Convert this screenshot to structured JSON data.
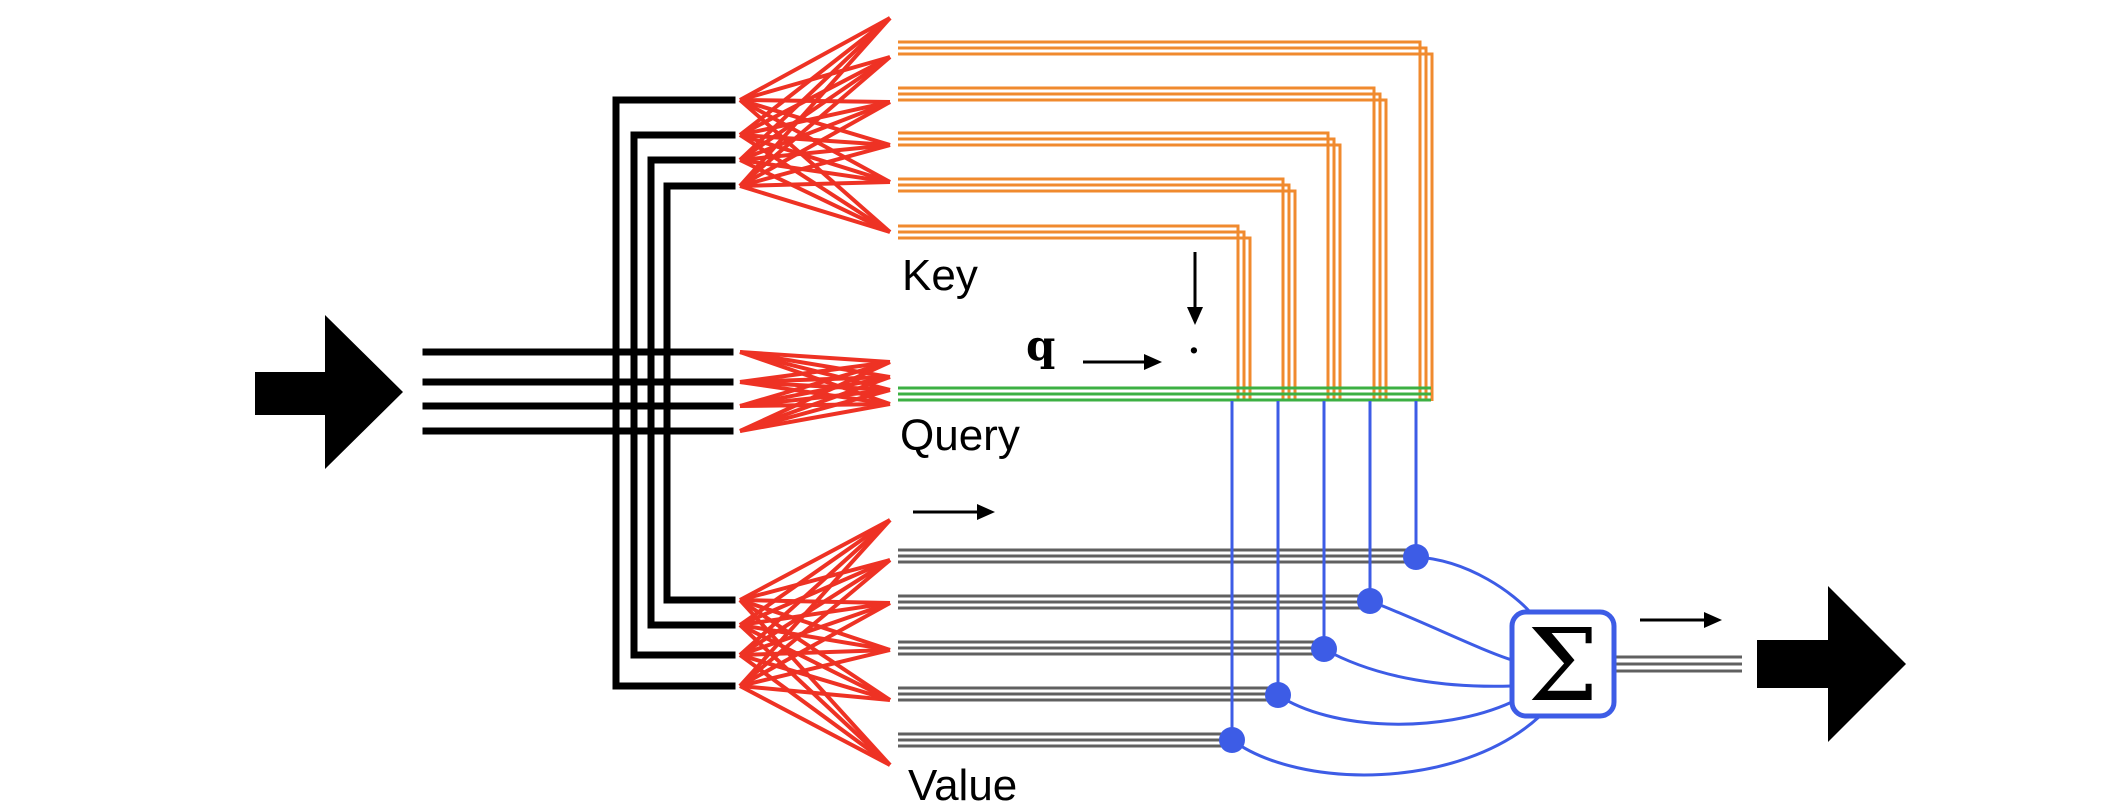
{
  "labels": {
    "key": "Key",
    "query": "Query",
    "value": "Value",
    "q_symbol": "q",
    "dot_symbol": "·",
    "sum_symbol": "Σ"
  },
  "colors": {
    "input": "#000000",
    "projection": "#ee3224",
    "key": "#f08a2e",
    "query": "#3cb043",
    "value": "#606060",
    "attention": "#3d5ce6",
    "arrow": "#000000"
  },
  "counts": {
    "input_lines": 4,
    "keys": 5,
    "values": 5,
    "lines_per_bundle": 3
  },
  "icons": {
    "input": "input-arrow-icon",
    "output": "output-arrow-icon",
    "sum": "summation-icon"
  }
}
